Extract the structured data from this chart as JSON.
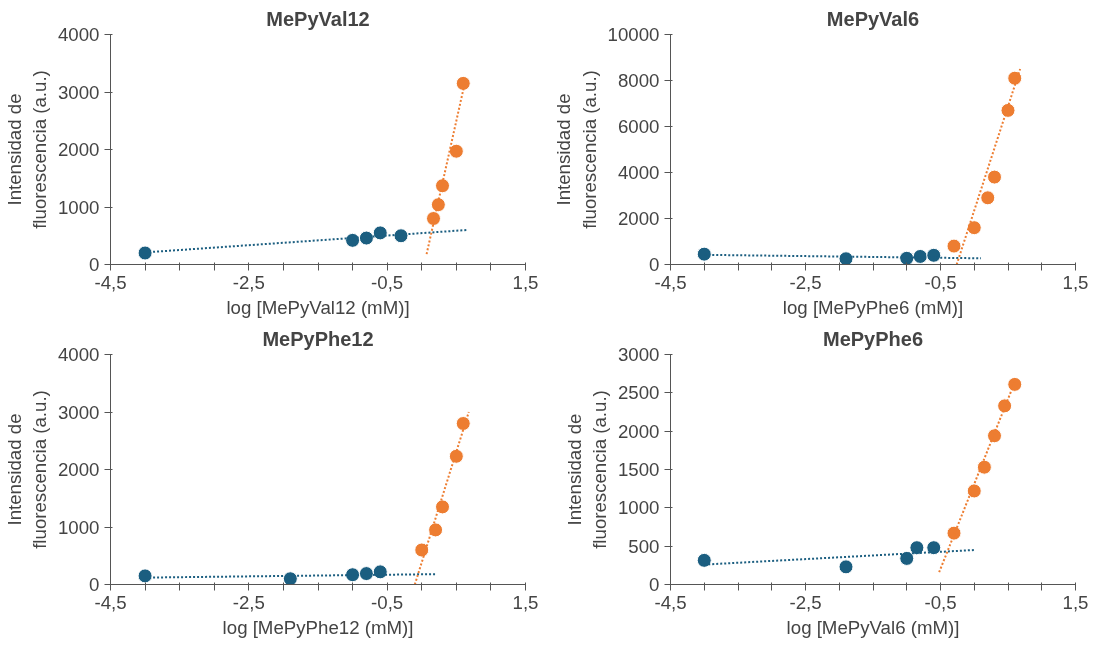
{
  "chart_data": [
    {
      "type": "scatter",
      "title": "MePyVal12",
      "xlabel": "log [MePyVal12 (mM)]",
      "ylabel": "Intensidad de\nfluorescencia (a.u.)",
      "marker": "circle",
      "grid": false,
      "xlim": [
        -4.5,
        1.5
      ],
      "ylim": [
        0,
        4000
      ],
      "yticks": [
        0,
        1000,
        2000,
        3000,
        4000
      ],
      "xticks": [
        {
          "value": -4.5,
          "label": "-4,5"
        },
        {
          "value": -4.0,
          "label": null
        },
        {
          "value": -3.5,
          "label": null
        },
        {
          "value": -3.0,
          "label": null
        },
        {
          "value": -2.5,
          "label": "-2,5"
        },
        {
          "value": -2.0,
          "label": null
        },
        {
          "value": -1.5,
          "label": null
        },
        {
          "value": -1.0,
          "label": null
        },
        {
          "value": -0.5,
          "label": "-0,5"
        },
        {
          "value": 0.0,
          "label": null
        },
        {
          "value": 0.5,
          "label": null
        },
        {
          "value": 1.0,
          "label": null
        },
        {
          "value": 1.5,
          "label": "1,5"
        }
      ],
      "series": [
        {
          "color": "#1b5e80",
          "x": [
            -4.0,
            -1.0,
            -0.8,
            -0.6,
            -0.3
          ],
          "values": [
            200,
            420,
            460,
            550,
            500
          ]
        },
        {
          "color": "#ed7d31",
          "x": [
            0.17,
            0.24,
            0.3,
            0.5,
            0.6
          ],
          "values": [
            800,
            1040,
            1370,
            1970,
            3150
          ]
        },
        {
          "type": "line",
          "line_style": "dotted",
          "marker": "none",
          "color": "#1b5e80",
          "x": [
            -4.0,
            0.65
          ],
          "values": [
            210,
            600
          ]
        },
        {
          "type": "line",
          "line_style": "dotted",
          "marker": "none",
          "color": "#ed7d31",
          "x": [
            0.07,
            0.63
          ],
          "values": [
            180,
            3200
          ]
        }
      ]
    },
    {
      "type": "scatter",
      "title": "MePyVal6",
      "xlabel": "log [MePyPhe6 (mM)]",
      "ylabel": "Intensidad de\nfluorescencia (a.u.)",
      "marker": "circle",
      "grid": false,
      "xlim": [
        -4.5,
        1.5
      ],
      "ylim": [
        0,
        10000
      ],
      "yticks": [
        0,
        2000,
        4000,
        6000,
        8000,
        10000
      ],
      "xticks": [
        {
          "value": -4.5,
          "label": "-4,5"
        },
        {
          "value": -4.0,
          "label": null
        },
        {
          "value": -3.5,
          "label": null
        },
        {
          "value": -3.0,
          "label": null
        },
        {
          "value": -2.5,
          "label": "-2,5"
        },
        {
          "value": -2.0,
          "label": null
        },
        {
          "value": -1.5,
          "label": null
        },
        {
          "value": -1.0,
          "label": null
        },
        {
          "value": -0.5,
          "label": "-0,5"
        },
        {
          "value": 0.0,
          "label": null
        },
        {
          "value": 0.5,
          "label": null
        },
        {
          "value": 1.0,
          "label": null
        },
        {
          "value": 1.5,
          "label": "1,5"
        }
      ],
      "series": [
        {
          "color": "#1b5e80",
          "x": [
            -4.0,
            -1.9,
            -1.0,
            -0.8,
            -0.6
          ],
          "values": [
            450,
            250,
            270,
            350,
            400
          ]
        },
        {
          "color": "#ed7d31",
          "x": [
            -0.3,
            0.0,
            0.2,
            0.3,
            0.5,
            0.6
          ],
          "values": [
            800,
            1600,
            2900,
            3800,
            6700,
            8100
          ]
        },
        {
          "type": "line",
          "line_style": "dotted",
          "marker": "none",
          "color": "#1b5e80",
          "x": [
            -4.0,
            0.1
          ],
          "values": [
            420,
            270
          ]
        },
        {
          "type": "line",
          "line_style": "dotted",
          "marker": "none",
          "color": "#ed7d31",
          "x": [
            -0.26,
            0.68
          ],
          "values": [
            0,
            8500
          ]
        }
      ]
    },
    {
      "type": "scatter",
      "title": "MePyPhe12",
      "xlabel": "log [MePyPhe12 (mM)]",
      "ylabel": "Intensidad de\nfluorescencia (a.u.)",
      "marker": "circle",
      "grid": false,
      "xlim": [
        -4.5,
        1.5
      ],
      "ylim": [
        0,
        4000
      ],
      "yticks": [
        0,
        1000,
        2000,
        3000,
        4000
      ],
      "xticks": [
        {
          "value": -4.5,
          "label": "-4,5"
        },
        {
          "value": -4.0,
          "label": null
        },
        {
          "value": -3.5,
          "label": null
        },
        {
          "value": -3.0,
          "label": null
        },
        {
          "value": -2.5,
          "label": "-2,5"
        },
        {
          "value": -2.0,
          "label": null
        },
        {
          "value": -1.5,
          "label": null
        },
        {
          "value": -1.0,
          "label": null
        },
        {
          "value": -0.5,
          "label": "-0,5"
        },
        {
          "value": 0.0,
          "label": null
        },
        {
          "value": 0.5,
          "label": null
        },
        {
          "value": 1.0,
          "label": null
        },
        {
          "value": 1.5,
          "label": "1,5"
        }
      ],
      "series": [
        {
          "color": "#1b5e80",
          "x": [
            -4.0,
            -1.9,
            -1.0,
            -0.8,
            -0.6
          ],
          "values": [
            150,
            100,
            170,
            190,
            220
          ]
        },
        {
          "color": "#ed7d31",
          "x": [
            0.0,
            0.2,
            0.3,
            0.5,
            0.6
          ],
          "values": [
            600,
            950,
            1350,
            2230,
            2800
          ]
        },
        {
          "type": "line",
          "line_style": "dotted",
          "marker": "none",
          "color": "#1b5e80",
          "x": [
            -4.0,
            0.2
          ],
          "values": [
            120,
            180
          ]
        },
        {
          "type": "line",
          "line_style": "dotted",
          "marker": "none",
          "color": "#ed7d31",
          "x": [
            -0.1,
            0.68
          ],
          "values": [
            0,
            3000
          ]
        }
      ]
    },
    {
      "type": "scatter",
      "title": "MePyPhe6",
      "xlabel": "log [MePyVal6 (mM)]",
      "ylabel": "Intensidad de\nfluorescencia (a.u.)",
      "marker": "circle",
      "grid": false,
      "xlim": [
        -4.5,
        1.5
      ],
      "ylim": [
        0,
        3000
      ],
      "yticks": [
        0,
        500,
        1000,
        1500,
        2000,
        2500,
        3000
      ],
      "xticks": [
        {
          "value": -4.5,
          "label": "-4,5"
        },
        {
          "value": -4.0,
          "label": null
        },
        {
          "value": -3.5,
          "label": null
        },
        {
          "value": -3.0,
          "label": null
        },
        {
          "value": -2.5,
          "label": "-2,5"
        },
        {
          "value": -2.0,
          "label": null
        },
        {
          "value": -1.5,
          "label": null
        },
        {
          "value": -1.0,
          "label": null
        },
        {
          "value": -0.5,
          "label": "-0,5"
        },
        {
          "value": 0.0,
          "label": null
        },
        {
          "value": 0.5,
          "label": null
        },
        {
          "value": 1.0,
          "label": null
        },
        {
          "value": 1.5,
          "label": "1,5"
        }
      ],
      "series": [
        {
          "color": "#1b5e80",
          "x": [
            -4.0,
            -1.9,
            -1.0,
            -0.85,
            -0.6
          ],
          "values": [
            315,
            230,
            340,
            480,
            480
          ]
        },
        {
          "color": "#ed7d31",
          "x": [
            -0.3,
            0.0,
            0.15,
            0.3,
            0.45,
            0.6
          ],
          "values": [
            670,
            1220,
            1530,
            1940,
            2330,
            2610
          ]
        },
        {
          "type": "line",
          "line_style": "dotted",
          "marker": "none",
          "color": "#1b5e80",
          "x": [
            -4.0,
            0.0
          ],
          "values": [
            260,
            450
          ]
        },
        {
          "type": "line",
          "line_style": "dotted",
          "marker": "none",
          "color": "#ed7d31",
          "x": [
            -0.52,
            0.6
          ],
          "values": [
            160,
            2640
          ]
        }
      ]
    }
  ]
}
